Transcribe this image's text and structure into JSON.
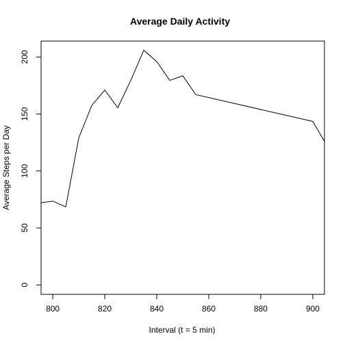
{
  "chart_data": {
    "type": "line",
    "title": "Average Daily Activity",
    "xlabel": "Interval (t = 5 min)",
    "ylabel": "Average Steps per Day",
    "xlim": [
      795.5,
      904.5
    ],
    "ylim": [
      -8.3,
      214
    ],
    "x_ticks": [
      "800",
      "820",
      "840",
      "860",
      "880",
      "900"
    ],
    "y_ticks": [
      "0",
      "50",
      "100",
      "150",
      "200"
    ],
    "grid": false,
    "color": "#000000",
    "x": [
      795,
      800,
      805,
      810,
      815,
      820,
      825,
      830,
      835,
      840,
      845,
      850,
      855,
      900,
      905
    ],
    "y": [
      72,
      73.5,
      68.5,
      129,
      157.5,
      171,
      155.5,
      179.5,
      206,
      196,
      179.5,
      183.5,
      167,
      143.5,
      124
    ]
  }
}
